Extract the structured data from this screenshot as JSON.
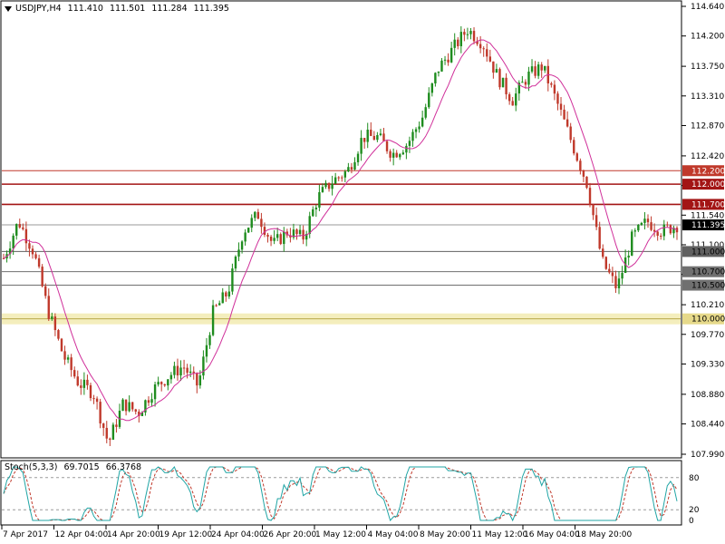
{
  "header": {
    "symbol": "USDJPY,H4",
    "open": "111.410",
    "high": "111.501",
    "low": "111.284",
    "close": "111.395"
  },
  "stochastic": {
    "name": "Stoch(5,3,3)",
    "k_value": "69.7015",
    "d_value": "66.3768",
    "levels": [
      "80",
      "20",
      "0"
    ]
  },
  "price_axis": {
    "ticks": [
      "114.640",
      "114.200",
      "113.750",
      "113.310",
      "112.870",
      "112.420",
      "111.980",
      "111.540",
      "111.100",
      "110.660",
      "110.210",
      "109.770",
      "109.330",
      "108.880",
      "108.440",
      "107.990"
    ]
  },
  "time_axis": {
    "labels": [
      "7 Apr 2017",
      "12 Apr 04:00",
      "14 Apr 20:00",
      "19 Apr 12:00",
      "24 Apr 04:00",
      "26 Apr 20:00",
      "1 May 12:00",
      "4 May 04:00",
      "8 May 20:00",
      "11 May 12:00",
      "16 May 04:00",
      "18 May 20:00"
    ]
  },
  "levels": [
    {
      "label": "112.200",
      "value": 112.2,
      "color": "#c0392b",
      "text_color": "#ffffff"
    },
    {
      "label": "112.000",
      "value": 112.0,
      "color": "#a31515",
      "text_color": "#ffffff"
    },
    {
      "label": "111.700",
      "value": 111.7,
      "color": "#a31515",
      "text_color": "#ffffff"
    },
    {
      "label": "111.395",
      "value": 111.395,
      "color": "#000000",
      "text_color": "#ffffff"
    },
    {
      "label": "111.000",
      "value": 111.0,
      "color": "#606060",
      "text_color": "#000000"
    },
    {
      "label": "110.700",
      "value": 110.7,
      "color": "#707070",
      "text_color": "#000000"
    },
    {
      "label": "110.500",
      "value": 110.5,
      "color": "#707070",
      "text_color": "#000000"
    },
    {
      "label": "110.000",
      "value": 110.0,
      "color": "#e6d98a",
      "text_color": "#000000"
    }
  ],
  "colors": {
    "bull": "#1e8c1e",
    "bear": "#c0392b",
    "ma": "#d0309a",
    "stoch_main": "#20a5a5",
    "stoch_signal": "#c0392b",
    "grid": "#c8c8c8"
  },
  "chart_data": {
    "type": "candlestick",
    "symbol": "USDJPY",
    "timeframe": "H4",
    "ylim": [
      107.99,
      114.64
    ],
    "x_start": "7 Apr 2017",
    "x_end": "18 May 20:00",
    "waypoints": [
      {
        "t": "7 Apr 2017",
        "price": 110.9
      },
      {
        "t": "8 Apr",
        "price": 111.45
      },
      {
        "t": "10 Apr",
        "price": 111.0
      },
      {
        "t": "11 Apr",
        "price": 110.1
      },
      {
        "t": "12 Apr 04:00",
        "price": 109.45
      },
      {
        "t": "13 Apr",
        "price": 109.05
      },
      {
        "t": "14 Apr",
        "price": 108.9
      },
      {
        "t": "14 Apr 20:00",
        "price": 108.15
      },
      {
        "t": "17 Apr",
        "price": 108.75
      },
      {
        "t": "18 Apr",
        "price": 108.6
      },
      {
        "t": "19 Apr 12:00",
        "price": 108.95
      },
      {
        "t": "20 Apr",
        "price": 109.15
      },
      {
        "t": "21 Apr",
        "price": 109.3
      },
      {
        "t": "22 Apr",
        "price": 109.0
      },
      {
        "t": "24 Apr 04:00",
        "price": 110.1
      },
      {
        "t": "25 Apr",
        "price": 110.4
      },
      {
        "t": "25 Apr 12:00",
        "price": 111.3
      },
      {
        "t": "26 Apr",
        "price": 111.55
      },
      {
        "t": "26 Apr 20:00",
        "price": 111.1
      },
      {
        "t": "27 Apr",
        "price": 111.3
      },
      {
        "t": "28 Apr",
        "price": 111.2
      },
      {
        "t": "1 May",
        "price": 111.8
      },
      {
        "t": "1 May 12:00",
        "price": 112.05
      },
      {
        "t": "2 May",
        "price": 112.2
      },
      {
        "t": "3 May",
        "price": 112.7
      },
      {
        "t": "4 May 04:00",
        "price": 112.7
      },
      {
        "t": "5 May",
        "price": 112.45
      },
      {
        "t": "5 May 12:00",
        "price": 112.6
      },
      {
        "t": "8 May",
        "price": 113.0
      },
      {
        "t": "8 May 12:00",
        "price": 113.7
      },
      {
        "t": "8 May 20:00",
        "price": 114.0
      },
      {
        "t": "9 May",
        "price": 114.3
      },
      {
        "t": "10 May",
        "price": 114.1
      },
      {
        "t": "11 May",
        "price": 113.6
      },
      {
        "t": "11 May 12:00",
        "price": 113.25
      },
      {
        "t": "12 May",
        "price": 113.6
      },
      {
        "t": "15 May",
        "price": 113.75
      },
      {
        "t": "16 May",
        "price": 113.2
      },
      {
        "t": "16 May 04:00",
        "price": 112.6
      },
      {
        "t": "17 May",
        "price": 112.0
      },
      {
        "t": "17 May 08:00",
        "price": 110.85
      },
      {
        "t": "17 May 16:00",
        "price": 110.45
      },
      {
        "t": "18 May",
        "price": 111.2
      },
      {
        "t": "18 May 12:00",
        "price": 111.45
      },
      {
        "t": "18 May 20:00",
        "price": 111.3
      },
      {
        "t": "19 May",
        "price": 111.395
      }
    ]
  }
}
